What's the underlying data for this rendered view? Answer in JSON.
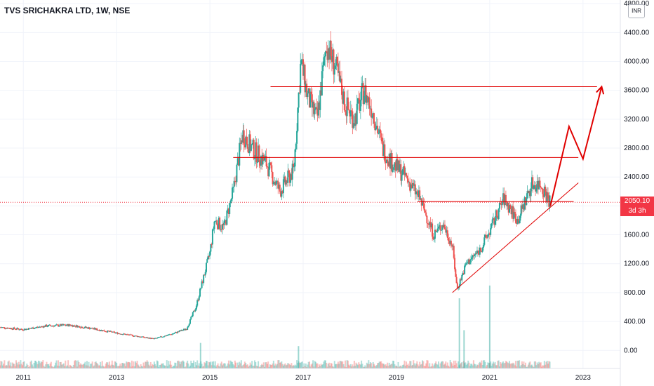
{
  "header": {
    "title": "TVS SRICHAKRA LTD, 1W, NSE",
    "currency_badge": "INR"
  },
  "price_label": {
    "value": "2050.10",
    "countdown": "3d 3h",
    "color": "#f23645"
  },
  "colors": {
    "up": "#26a69a",
    "down": "#ef5350",
    "drawing": "#e00000",
    "grid": "#f0f3fa"
  },
  "chart_data": {
    "type": "candlestick",
    "x_axis": {
      "range": [
        2010.5,
        2023.8
      ],
      "ticks": [
        2011,
        2013,
        2015,
        2017,
        2019,
        2021,
        2023
      ],
      "tick_labels": [
        "2011",
        "2013",
        "2015",
        "2017",
        "2019",
        "2021",
        "2023"
      ]
    },
    "y_axis": {
      "range": [
        -250,
        4850
      ],
      "ticks": [
        0,
        400,
        800,
        1200,
        1600,
        2000,
        2400,
        2800,
        3200,
        3600,
        4000,
        4400,
        4800
      ],
      "tick_labels": [
        "0.00",
        "400.00",
        "800.00",
        "1200.00",
        "1600.00",
        "",
        "2400.00",
        "2800.00",
        "3200.00",
        "3600.00",
        "4000.00",
        "4400.00",
        "4800.00"
      ]
    },
    "price_path": [
      [
        2010.5,
        320
      ],
      [
        2011.0,
        290
      ],
      [
        2011.5,
        340
      ],
      [
        2012.0,
        350
      ],
      [
        2012.5,
        300
      ],
      [
        2013.0,
        240
      ],
      [
        2013.5,
        190
      ],
      [
        2013.8,
        160
      ],
      [
        2014.2,
        230
      ],
      [
        2014.5,
        300
      ],
      [
        2014.7,
        600
      ],
      [
        2014.9,
        1100
      ],
      [
        2015.0,
        1350
      ],
      [
        2015.1,
        1800
      ],
      [
        2015.3,
        1700
      ],
      [
        2015.5,
        2200
      ],
      [
        2015.7,
        3000
      ],
      [
        2015.9,
        2800
      ],
      [
        2016.2,
        2600
      ],
      [
        2016.5,
        2200
      ],
      [
        2016.8,
        2500
      ],
      [
        2016.95,
        4000
      ],
      [
        2017.1,
        3500
      ],
      [
        2017.3,
        3200
      ],
      [
        2017.5,
        4250
      ],
      [
        2017.7,
        3900
      ],
      [
        2017.9,
        3400
      ],
      [
        2018.1,
        3200
      ],
      [
        2018.3,
        3600
      ],
      [
        2018.5,
        3300
      ],
      [
        2018.7,
        2800
      ],
      [
        2018.9,
        2600
      ],
      [
        2019.2,
        2400
      ],
      [
        2019.5,
        2100
      ],
      [
        2019.8,
        1600
      ],
      [
        2020.0,
        1750
      ],
      [
        2020.2,
        1450
      ],
      [
        2020.3,
        850
      ],
      [
        2020.5,
        1200
      ],
      [
        2020.8,
        1400
      ],
      [
        2021.0,
        1650
      ],
      [
        2021.3,
        2100
      ],
      [
        2021.6,
        1800
      ],
      [
        2021.9,
        2300
      ],
      [
        2022.1,
        2300
      ],
      [
        2022.3,
        2050
      ]
    ],
    "volume_spikes": [
      [
        2014.8,
        400
      ],
      [
        2016.9,
        350
      ],
      [
        2020.35,
        1100
      ],
      [
        2020.45,
        600
      ],
      [
        2021.0,
        1300
      ]
    ],
    "drawings": {
      "horizontal_lines": [
        {
          "y": 3650,
          "x_start": 2016.3,
          "x_end": 2023.3
        },
        {
          "y": 2670,
          "x_start": 2015.5,
          "x_end": 2022.9
        },
        {
          "y": 2060,
          "x_start": 2019.45,
          "x_end": 2022.8
        }
      ],
      "trendline": {
        "from": [
          2020.2,
          800
        ],
        "to": [
          2022.9,
          2320
        ]
      },
      "projection_path": [
        [
          2022.3,
          2000
        ],
        [
          2022.7,
          3100
        ],
        [
          2023.0,
          2650
        ],
        [
          2023.4,
          3650
        ]
      ],
      "current_price_line": 2050
    }
  }
}
